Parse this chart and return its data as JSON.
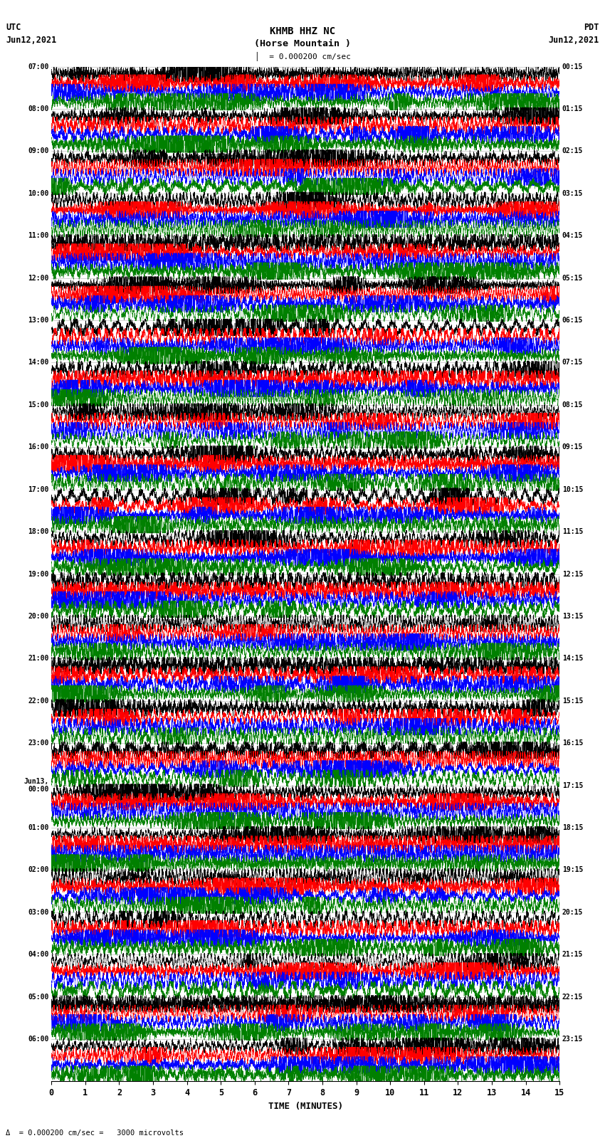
{
  "title_line1": "KHMB HHZ NC",
  "title_line2": "(Horse Mountain )",
  "scale_label": "= 0.000200 cm/sec",
  "left_date": "Jun12,2021",
  "right_date": "Jun12,2021",
  "left_tz": "UTC",
  "right_tz": "PDT",
  "xlabel": "TIME (MINUTES)",
  "bottom_note": "= 0.000200 cm/sec =   3000 microvolts",
  "left_times": [
    "07:00",
    "08:00",
    "09:00",
    "10:00",
    "11:00",
    "12:00",
    "13:00",
    "14:00",
    "15:00",
    "16:00",
    "17:00",
    "18:00",
    "19:00",
    "20:00",
    "21:00",
    "22:00",
    "23:00",
    "Jun13,\n00:00",
    "01:00",
    "02:00",
    "03:00",
    "04:00",
    "05:00",
    "06:00"
  ],
  "right_times": [
    "00:15",
    "01:15",
    "02:15",
    "03:15",
    "04:15",
    "05:15",
    "06:15",
    "07:15",
    "08:15",
    "09:15",
    "10:15",
    "11:15",
    "12:15",
    "13:15",
    "14:15",
    "15:15",
    "16:15",
    "17:15",
    "18:15",
    "19:15",
    "20:15",
    "21:15",
    "22:15",
    "23:15"
  ],
  "n_rows": 24,
  "n_cols": 4,
  "colors": [
    "black",
    "red",
    "blue",
    "green"
  ],
  "time_min": 0,
  "time_max": 15,
  "xticks": [
    0,
    1,
    2,
    3,
    4,
    5,
    6,
    7,
    8,
    9,
    10,
    11,
    12,
    13,
    14,
    15
  ],
  "background_color": "white",
  "noise_seed": 42
}
